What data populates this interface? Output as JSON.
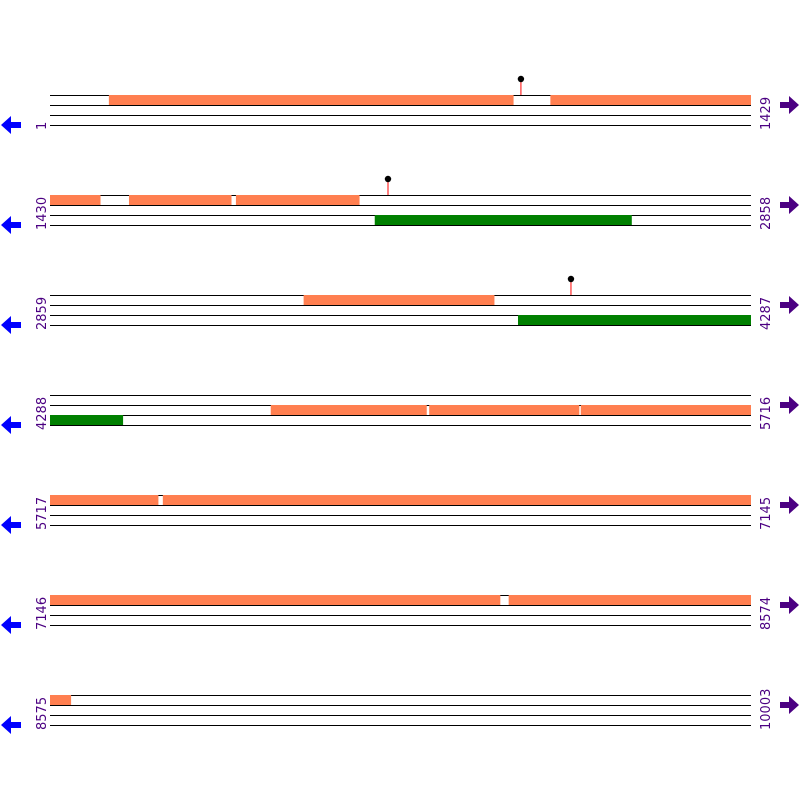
{
  "colors": {
    "feature": "#ff7f50",
    "green_feature": "#008000",
    "line": "#000000",
    "label": "#4b0082",
    "left_arrow": "#0000ff",
    "right_arrow": "#4b0082",
    "marker_stem": "#ff0000",
    "marker_head": "#000000"
  },
  "icons": {
    "left": "arrow-left-icon",
    "right": "arrow-right-icon"
  },
  "rows": [
    {
      "start": 1,
      "end": 1429,
      "start_label": "1",
      "end_label": "1429",
      "tracks": [
        {
          "segments": [
            [
              121,
              945
            ],
            [
              1021,
              1429
            ]
          ]
        },
        {
          "segments": []
        },
        {
          "segments": []
        }
      ],
      "markers": [
        {
          "track": 0,
          "pos": 961
        }
      ]
    },
    {
      "start": 1430,
      "end": 2858,
      "start_label": "1430",
      "end_label": "2858",
      "tracks": [
        {
          "segments": [
            [
              1430,
              1532
            ],
            [
              1591,
              1799
            ],
            [
              1809,
              2060
            ]
          ]
        },
        {
          "segments": []
        },
        {
          "segments": [
            [
              2092,
              2615
            ]
          ],
          "color": "green"
        }
      ],
      "markers": [
        {
          "track": 0,
          "pos": 2119
        }
      ]
    },
    {
      "start": 2859,
      "end": 4287,
      "start_label": "2859",
      "end_label": "4287",
      "tracks": [
        {
          "segments": [
            [
              3376,
              3764
            ]
          ]
        },
        {
          "segments": []
        },
        {
          "segments": [
            [
              3813,
              4287
            ]
          ],
          "color": "green"
        }
      ],
      "markers": [
        {
          "track": 0,
          "pos": 3921
        }
      ]
    },
    {
      "start": 4288,
      "end": 5716,
      "start_label": "4288",
      "end_label": "5716",
      "tracks": [
        {
          "segments": []
        },
        {
          "segments": [
            [
              4738,
              5055
            ],
            [
              5061,
              5366
            ],
            [
              5370,
              5716
            ]
          ]
        },
        {
          "segments": [
            [
              4288,
              4436
            ]
          ],
          "color": "green"
        }
      ],
      "markers": []
    },
    {
      "start": 5717,
      "end": 7145,
      "start_label": "5717",
      "end_label": "7145",
      "tracks": [
        {
          "segments": [
            [
              5717,
              5937
            ],
            [
              5947,
              7145
            ]
          ]
        },
        {
          "segments": []
        },
        {
          "segments": []
        }
      ],
      "markers": []
    },
    {
      "start": 7146,
      "end": 8574,
      "start_label": "7146",
      "end_label": "8574",
      "tracks": [
        {
          "segments": [
            [
              7146,
              8063
            ],
            [
              8081,
              8574
            ]
          ]
        },
        {
          "segments": []
        },
        {
          "segments": []
        }
      ],
      "markers": []
    },
    {
      "start": 8575,
      "end": 10003,
      "start_label": "8575",
      "end_label": "10003",
      "tracks": [
        {
          "segments": [
            [
              8575,
              8617
            ]
          ]
        },
        {
          "segments": []
        },
        {
          "segments": []
        }
      ],
      "markers": []
    }
  ]
}
